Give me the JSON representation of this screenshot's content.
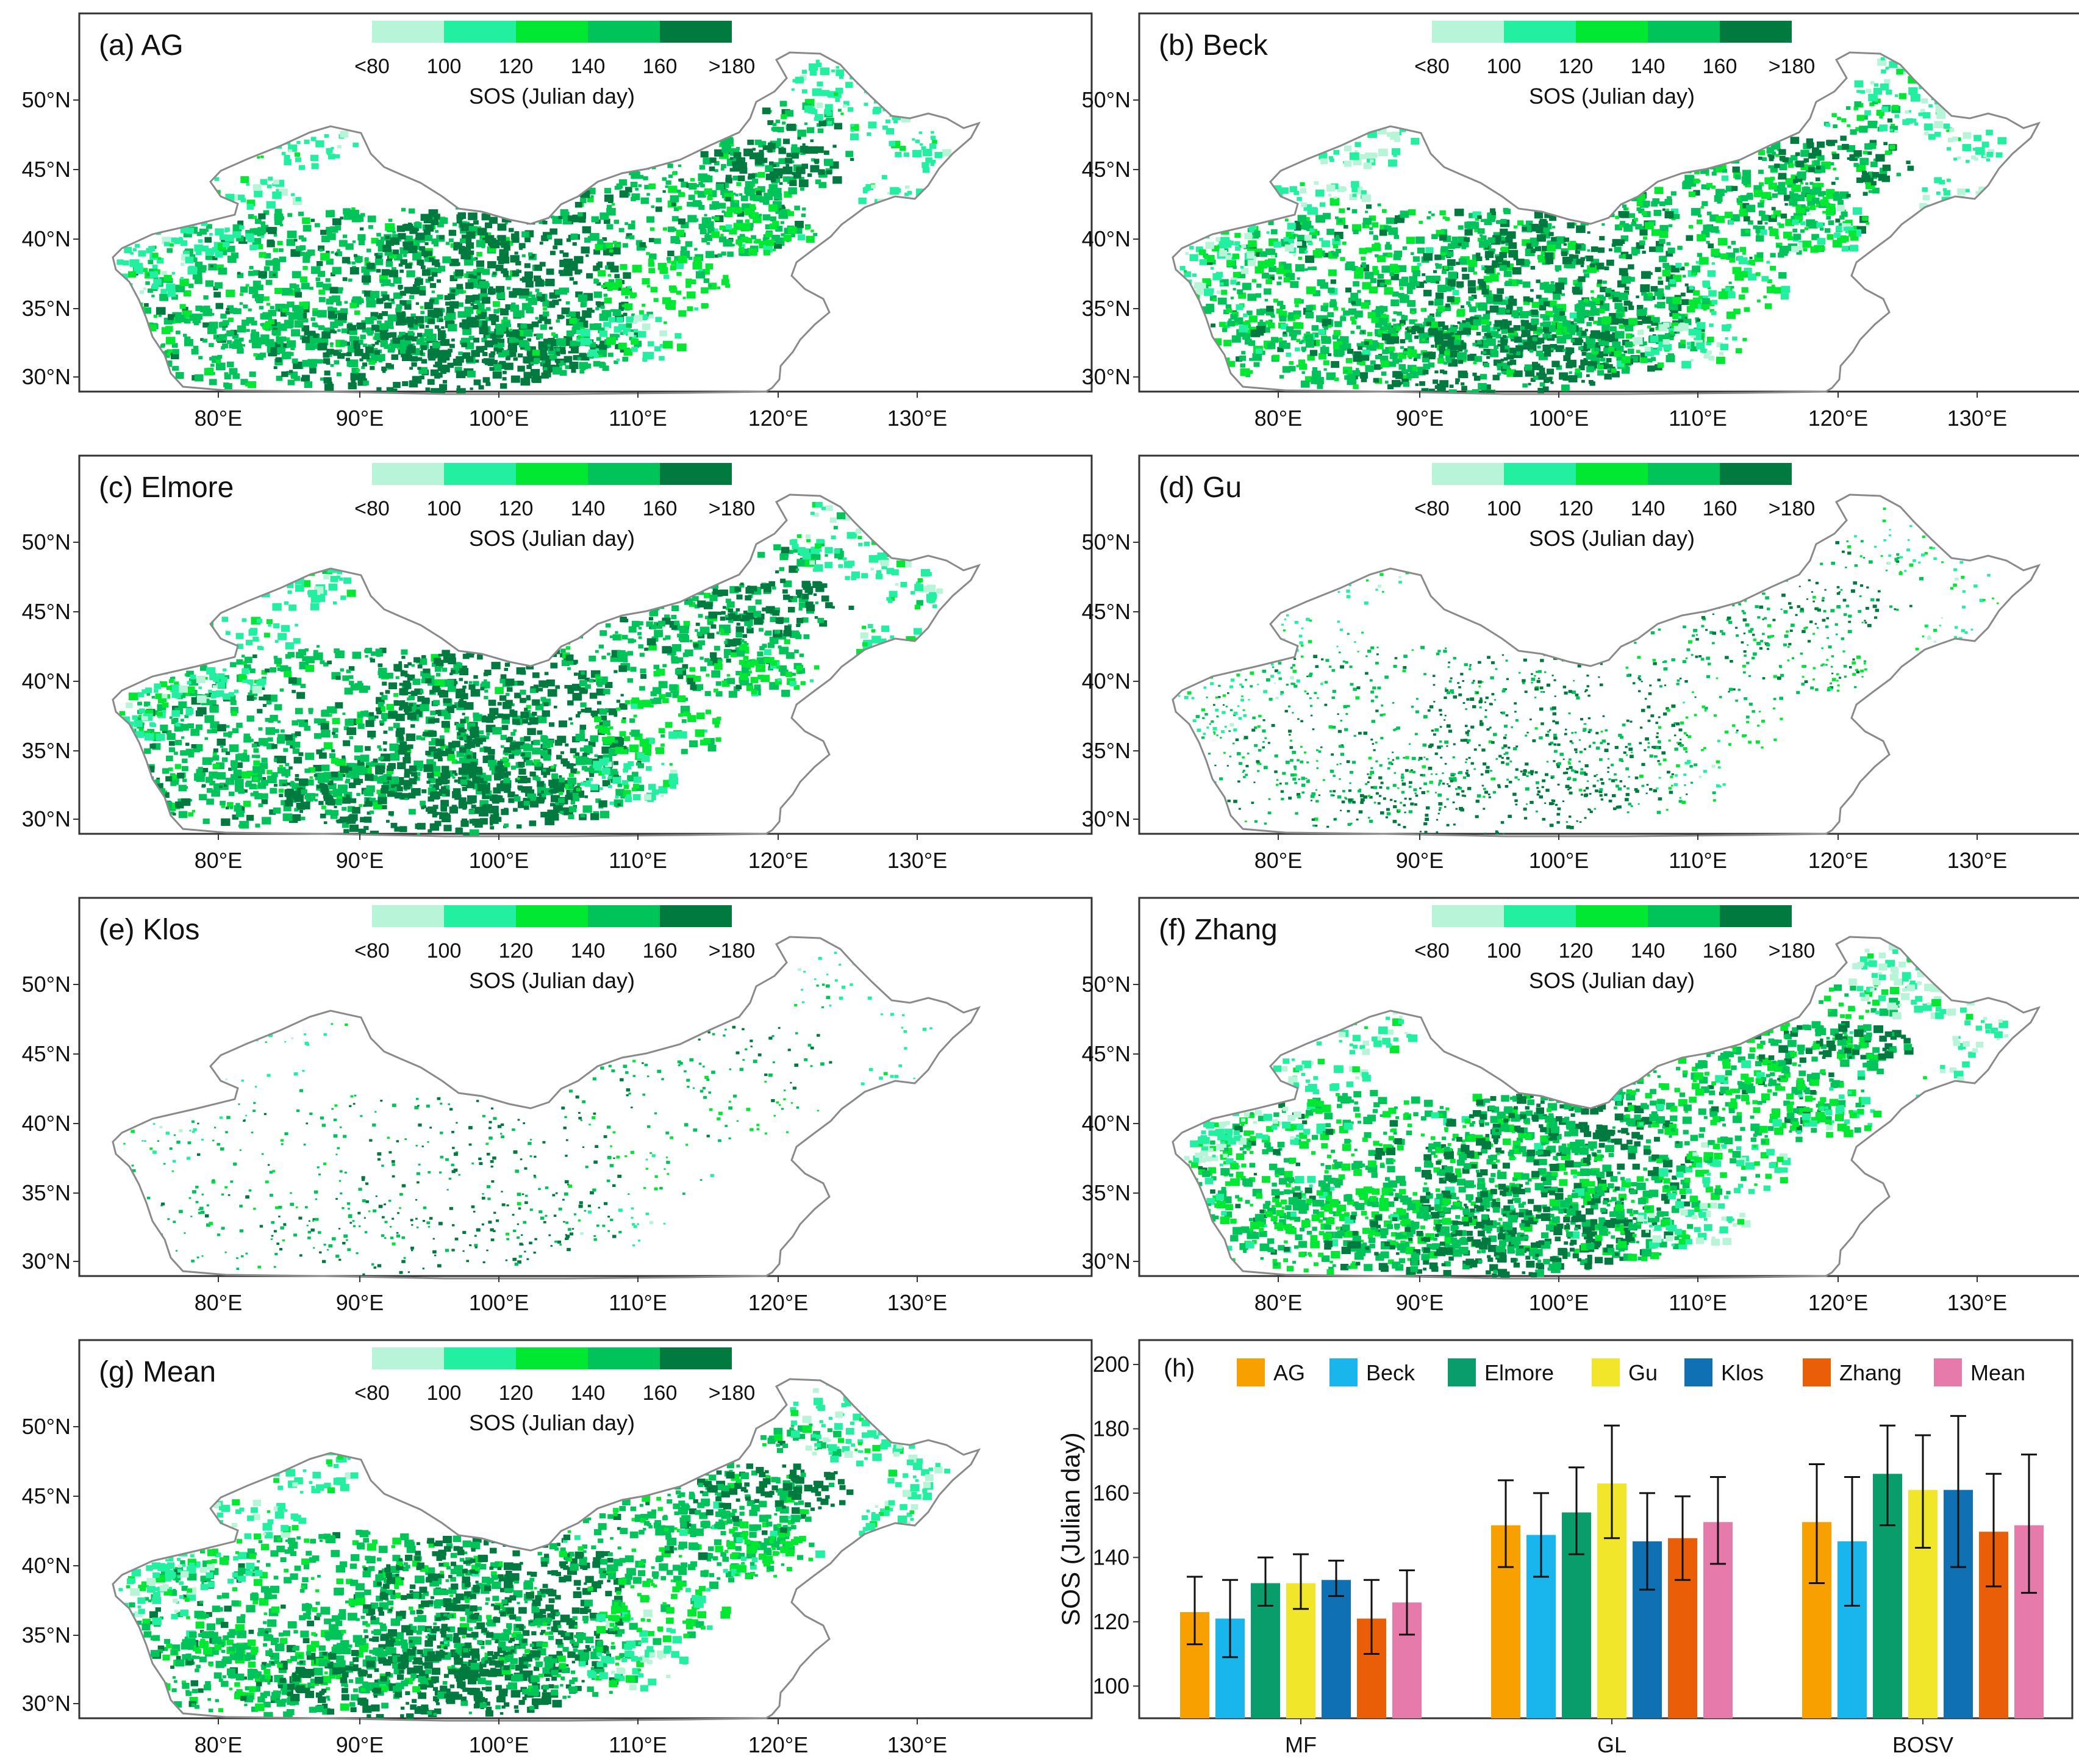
{
  "panels": [
    {
      "id": "a",
      "title": "(a) AG",
      "intensity": 1.0,
      "sparsity": 0.0
    },
    {
      "id": "b",
      "title": "(b) Beck",
      "intensity": 0.85,
      "sparsity": 0.0
    },
    {
      "id": "c",
      "title": "(c) Elmore",
      "intensity": 1.05,
      "sparsity": 0.05
    },
    {
      "id": "d",
      "title": "(d) Gu",
      "intensity": 1.1,
      "sparsity": 0.45
    },
    {
      "id": "e",
      "title": "(e) Klos",
      "intensity": 1.0,
      "sparsity": 0.75
    },
    {
      "id": "f",
      "title": "(f) Zhang",
      "intensity": 0.8,
      "sparsity": 0.0
    },
    {
      "id": "g",
      "title": "(g) Mean",
      "intensity": 0.95,
      "sparsity": 0.0
    }
  ],
  "legend": {
    "tick_labels": [
      "<80",
      "100",
      "120",
      "140",
      "160",
      ">180"
    ],
    "title": "SOS (Julian day)",
    "colors": [
      "#b8f5d8",
      "#22f0a0",
      "#00e832",
      "#00c45a",
      "#007a3e"
    ]
  },
  "lat_labels": [
    "50°N",
    "45°N",
    "40°N",
    "35°N",
    "30°N"
  ],
  "lon_labels": [
    "80°E",
    "90°E",
    "100°E",
    "110°E",
    "120°E",
    "130°E"
  ],
  "chart_data": {
    "type": "bar",
    "panel_label": "(h)",
    "categories": [
      "MF",
      "GL",
      "BOSV"
    ],
    "ylabel": "SOS (Julian day)",
    "xlabel": "",
    "ylim": [
      90,
      200
    ],
    "yticks": [
      100,
      120,
      140,
      160,
      180,
      200
    ],
    "series": [
      {
        "name": "AG",
        "color": "#f7a000",
        "values": [
          123,
          150,
          151
        ],
        "err_low": [
          113,
          137,
          132
        ],
        "err_high": [
          134,
          164,
          169
        ]
      },
      {
        "name": "Beck",
        "color": "#18b6ec",
        "values": [
          121,
          147,
          145
        ],
        "err_low": [
          109,
          134,
          125
        ],
        "err_high": [
          133,
          160,
          165
        ]
      },
      {
        "name": "Elmore",
        "color": "#0a9d6c",
        "values": [
          132,
          154,
          166
        ],
        "err_low": [
          125,
          141,
          150
        ],
        "err_high": [
          140,
          168,
          181
        ]
      },
      {
        "name": "Gu",
        "color": "#f1e62a",
        "values": [
          132,
          163,
          161
        ],
        "err_low": [
          124,
          146,
          143
        ],
        "err_high": [
          141,
          181,
          178
        ]
      },
      {
        "name": "Klos",
        "color": "#1070b4",
        "values": [
          133,
          145,
          161
        ],
        "err_low": [
          128,
          130,
          137
        ],
        "err_high": [
          139,
          160,
          184
        ]
      },
      {
        "name": "Zhang",
        "color": "#ea5e07",
        "values": [
          121,
          146,
          148
        ],
        "err_low": [
          110,
          133,
          131
        ],
        "err_high": [
          133,
          159,
          166
        ]
      },
      {
        "name": "Mean",
        "color": "#e67aaa",
        "values": [
          126,
          151,
          150
        ],
        "err_low": [
          116,
          138,
          129
        ],
        "err_high": [
          136,
          165,
          172
        ]
      }
    ]
  }
}
